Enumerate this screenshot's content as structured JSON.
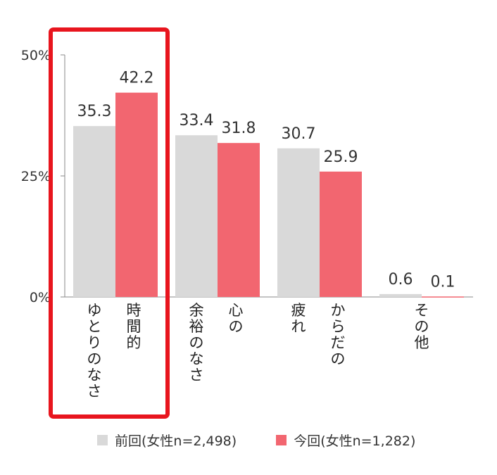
{
  "colors": {
    "previous": "#d9d9d9",
    "current": "#f26670",
    "highlight": "#e8151e",
    "axis": "#888888"
  },
  "chart_data": {
    "type": "bar",
    "categories": [
      {
        "lines": [
          "ゆとりのなさ",
          "時間的"
        ]
      },
      {
        "lines": [
          "余裕のなさ",
          "心の"
        ]
      },
      {
        "lines": [
          "疲れ",
          "からだの"
        ]
      },
      {
        "lines": [
          "その他"
        ]
      }
    ],
    "series": [
      {
        "name": "前回(女性n=2,498)",
        "values": [
          35.3,
          33.4,
          30.7,
          0.6
        ],
        "labels": [
          "35.3",
          "33.4",
          "30.7",
          "0.6"
        ]
      },
      {
        "name": "今回(女性n=1,282)",
        "values": [
          42.2,
          31.8,
          25.9,
          0.1
        ],
        "labels": [
          "42.2",
          "31.8",
          "25.9",
          "0.1"
        ]
      }
    ],
    "yticks": [
      {
        "value": 0,
        "label": "0%"
      },
      {
        "value": 25,
        "label": "25%"
      },
      {
        "value": 50,
        "label": "50%"
      }
    ],
    "ylim": [
      0,
      50
    ],
    "grid": false,
    "legend_position": "bottom",
    "highlighted_category": 0
  }
}
